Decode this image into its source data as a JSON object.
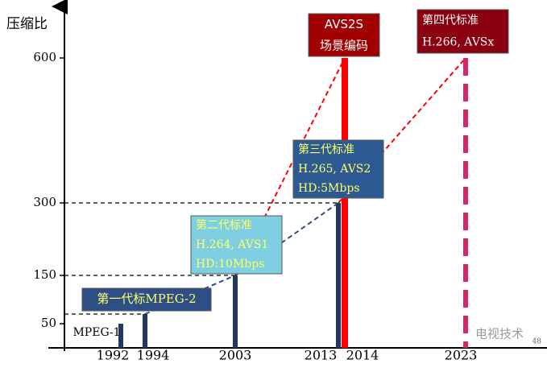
{
  "chart_data": {
    "type": "bar",
    "y_label": "压缩比",
    "categories": [
      "1992",
      "1994",
      "2003",
      "2013",
      "2014",
      "2023"
    ],
    "values": [
      50,
      70,
      150,
      300,
      600,
      600
    ],
    "colors": [
      "#1f3864",
      "#1f3864",
      "#1f3864",
      "#1f3864",
      "#ff0000",
      "#d6246e"
    ],
    "dashed": [
      false,
      false,
      false,
      false,
      false,
      true
    ],
    "ylim": [
      0,
      700
    ],
    "yticks": [
      50,
      150,
      300,
      600
    ],
    "annotations": [
      {
        "lines": [
          "MPEG-1"
        ],
        "fill": "none",
        "text_color": "#000000"
      },
      {
        "lines": [
          "第一代标MPEG-2"
        ],
        "fill": "#2e4f86",
        "text_color": "#ffff66"
      },
      {
        "lines": [
          "第二代标准",
          "H.264, AVS1",
          "HD:10Mbps"
        ],
        "fill": "#7fcfe3",
        "text_color": "#ffff66"
      },
      {
        "lines": [
          "第三代标准",
          "H.265, AVS2",
          "HD:5Mbps"
        ],
        "fill": "#2e5a94",
        "text_color": "#ffff66"
      },
      {
        "lines": [
          "AVS2S",
          "场景编码"
        ],
        "fill": "#a00000",
        "text_color": "#ffffff"
      },
      {
        "lines": [
          "第四代标准",
          "H.266, AVSx"
        ],
        "fill": "#8b0010",
        "text_color": "#ffffff"
      }
    ],
    "watermark": "电视技术",
    "page_number": "48"
  }
}
